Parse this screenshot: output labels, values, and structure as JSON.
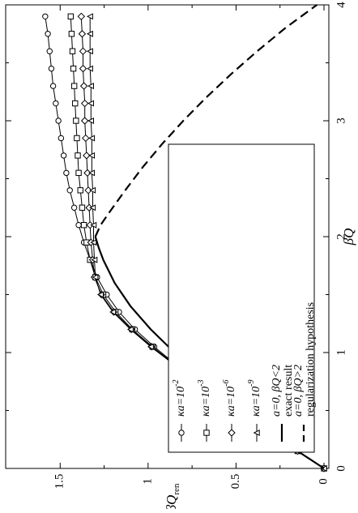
{
  "chart_data": {
    "type": "line",
    "orientation": "rotated-90-ccw",
    "xlabel": "βQ",
    "ylabel": "βQ",
    "ylabel_subscript": "ren",
    "xlim": [
      0,
      4
    ],
    "ylim": [
      0,
      1.75
    ],
    "x_ticks": [
      0,
      1,
      2,
      3,
      4
    ],
    "x_tick_labels": [
      "0",
      "1",
      "2",
      "3",
      "4"
    ],
    "x_minor_ticks": [
      0.5,
      1.5,
      2.5,
      3.5
    ],
    "y_ticks": [
      0,
      0.5,
      1,
      1.5
    ],
    "y_tick_labels": [
      "0",
      "0.5",
      "1",
      "1.5"
    ],
    "y_minor_ticks": [
      0.25,
      0.75,
      1.25
    ],
    "grid": false,
    "legend_placement": "inside, upper-right region of the plotted data (lower-right on the page)",
    "colors": {
      "lines": "#000000",
      "background": "#ffffff"
    },
    "series": [
      {
        "name": "κa=10⁻²",
        "legend_lines": [
          "κa=10",
          "-2"
        ],
        "marker": "circle",
        "style": "solid",
        "x": [
          0,
          0.15,
          0.3,
          0.45,
          0.6,
          0.75,
          0.9,
          1.05,
          1.2,
          1.35,
          1.5,
          1.65,
          1.8,
          1.95,
          2.1,
          2.25,
          2.4,
          2.55,
          2.7,
          2.85,
          3.0,
          3.15,
          3.3,
          3.45,
          3.6,
          3.75,
          3.9
        ],
        "y": [
          0,
          0.15,
          0.295,
          0.44,
          0.58,
          0.715,
          0.845,
          0.965,
          1.075,
          1.165,
          1.235,
          1.29,
          1.33,
          1.365,
          1.395,
          1.42,
          1.445,
          1.465,
          1.48,
          1.495,
          1.51,
          1.525,
          1.54,
          1.55,
          1.56,
          1.57,
          1.585
        ]
      },
      {
        "name": "κa=10⁻³",
        "legend_lines": [
          "κa=10",
          "-3"
        ],
        "marker": "square",
        "style": "solid",
        "x": [
          0,
          0.15,
          0.3,
          0.45,
          0.6,
          0.75,
          0.9,
          1.05,
          1.2,
          1.35,
          1.5,
          1.65,
          1.8,
          1.95,
          2.1,
          2.25,
          2.4,
          2.55,
          2.7,
          2.85,
          3.0,
          3.15,
          3.3,
          3.45,
          3.6,
          3.75,
          3.9
        ],
        "y": [
          0,
          0.15,
          0.295,
          0.44,
          0.58,
          0.72,
          0.85,
          0.975,
          1.09,
          1.185,
          1.255,
          1.3,
          1.33,
          1.35,
          1.365,
          1.375,
          1.385,
          1.395,
          1.4,
          1.405,
          1.41,
          1.415,
          1.42,
          1.425,
          1.43,
          1.435,
          1.44
        ]
      },
      {
        "name": "κa=10⁻⁶",
        "legend_lines": [
          "κa=10",
          "-6"
        ],
        "marker": "diamond",
        "style": "solid",
        "x": [
          0,
          0.15,
          0.3,
          0.45,
          0.6,
          0.75,
          0.9,
          1.05,
          1.2,
          1.35,
          1.5,
          1.65,
          1.8,
          1.95,
          2.1,
          2.25,
          2.4,
          2.55,
          2.7,
          2.85,
          3.0,
          3.15,
          3.3,
          3.45,
          3.6,
          3.75,
          3.9
        ],
        "y": [
          0,
          0.15,
          0.295,
          0.44,
          0.58,
          0.72,
          0.855,
          0.98,
          1.095,
          1.195,
          1.265,
          1.305,
          1.315,
          1.325,
          1.33,
          1.335,
          1.34,
          1.345,
          1.35,
          1.355,
          1.36,
          1.36,
          1.365,
          1.37,
          1.37,
          1.375,
          1.38
        ]
      },
      {
        "name": "κa=10⁻⁹",
        "legend_lines": [
          "κa=10",
          "-9"
        ],
        "marker": "triangle",
        "style": "solid",
        "x": [
          0,
          0.15,
          0.3,
          0.45,
          0.6,
          0.75,
          0.9,
          1.05,
          1.2,
          1.35,
          1.5,
          1.65,
          1.8,
          1.95,
          2.1,
          2.25,
          2.4,
          2.55,
          2.7,
          2.85,
          3.0,
          3.15,
          3.3,
          3.45,
          3.6,
          3.75,
          3.9
        ],
        "y": [
          0,
          0.15,
          0.295,
          0.44,
          0.58,
          0.72,
          0.855,
          0.985,
          1.1,
          1.2,
          1.27,
          1.3,
          1.305,
          1.31,
          1.31,
          1.315,
          1.315,
          1.32,
          1.32,
          1.32,
          1.325,
          1.325,
          1.325,
          1.33,
          1.33,
          1.33,
          1.33
        ]
      },
      {
        "name": "a=0, βQ<2 exact result",
        "legend_lines": [
          "a=0, βQ<2",
          "exact result"
        ],
        "marker": "none",
        "style": "solid-thick",
        "x": [
          0,
          0.2,
          0.4,
          0.6,
          0.8,
          1.0,
          1.2,
          1.4,
          1.6,
          1.8,
          1.9,
          2.0
        ],
        "y": [
          0,
          0.2,
          0.38,
          0.55,
          0.7,
          0.85,
          0.985,
          1.1,
          1.19,
          1.255,
          1.28,
          1.3
        ]
      },
      {
        "name": "a=0, βQ>2 regularization hypothesis",
        "legend_lines": [
          "a=0, βQ>2",
          "regularization hypothesis"
        ],
        "marker": "none",
        "style": "dashed",
        "x": [
          2.0,
          2.1,
          2.2,
          2.4,
          2.6,
          2.8,
          3.0,
          3.2,
          3.4,
          3.6,
          3.8,
          4.0
        ],
        "y": [
          1.3,
          1.27,
          1.225,
          1.13,
          1.03,
          0.92,
          0.8,
          0.67,
          0.53,
          0.38,
          0.22,
          0.04
        ]
      }
    ]
  }
}
